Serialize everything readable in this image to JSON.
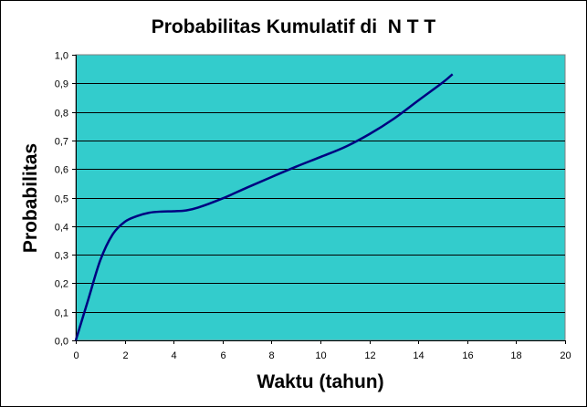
{
  "chart_data": {
    "type": "line",
    "title": "Probabilitas Kumulatif di  N T T",
    "xlabel": "Waktu (tahun)",
    "ylabel": "Probabilitas",
    "xlim": [
      0,
      20
    ],
    "ylim": [
      0,
      1
    ],
    "x_ticks": [
      "0",
      "2",
      "4",
      "6",
      "8",
      "10",
      "12",
      "14",
      "16",
      "18",
      "20"
    ],
    "y_ticks": [
      "0,0",
      "0,1",
      "0,2",
      "0,3",
      "0,4",
      "0,5",
      "0,6",
      "0,7",
      "0,8",
      "0,9",
      "1,0"
    ],
    "grid": "horizontal",
    "series": [
      {
        "x": [
          0,
          0.5,
          1,
          1.5,
          2,
          2.5,
          3,
          3.5,
          4,
          4.5,
          5,
          6,
          7,
          8,
          9,
          10,
          11,
          12,
          13,
          14,
          15,
          15.4
        ],
        "y": [
          0.0,
          0.14,
          0.28,
          0.37,
          0.415,
          0.435,
          0.447,
          0.451,
          0.452,
          0.455,
          0.465,
          0.497,
          0.535,
          0.572,
          0.608,
          0.642,
          0.677,
          0.722,
          0.776,
          0.84,
          0.903,
          0.932
        ]
      }
    ],
    "colors": {
      "plot_background": "#33CCCC",
      "line": "#000080",
      "grid": "#000000"
    }
  }
}
